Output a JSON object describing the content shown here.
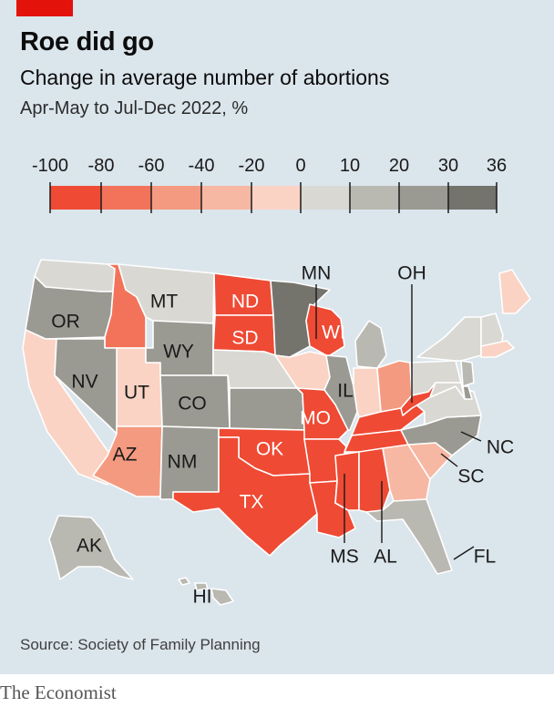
{
  "title": "Roe did go",
  "subtitle": "Change in average number of abortions",
  "units": "Apr-May to Jul-Dec 2022, %",
  "source": "Source: Society of Family Planning",
  "brand": "The Economist",
  "legend": {
    "ticks": [
      "-100",
      "-80",
      "-60",
      "-40",
      "-20",
      "0",
      "10",
      "20",
      "30",
      "36"
    ],
    "bins": [
      {
        "from": -100,
        "to": -80,
        "color": "#ef4a34"
      },
      {
        "from": -80,
        "to": -60,
        "color": "#f2735a"
      },
      {
        "from": -60,
        "to": -40,
        "color": "#f49a80"
      },
      {
        "from": -40,
        "to": -20,
        "color": "#f7b8a3"
      },
      {
        "from": -20,
        "to": 0,
        "color": "#fad3c4"
      },
      {
        "from": 0,
        "to": 10,
        "color": "#d9d8d3"
      },
      {
        "from": 10,
        "to": 20,
        "color": "#b9b8b1"
      },
      {
        "from": 20,
        "to": 30,
        "color": "#9a9992"
      },
      {
        "from": 30,
        "to": 36,
        "color": "#74736c"
      }
    ]
  },
  "states": {
    "WA": {
      "bin": 5
    },
    "OR": {
      "bin": 7,
      "label": "OR"
    },
    "CA": {
      "bin": 4
    },
    "ID": {
      "bin": 1
    },
    "NV": {
      "bin": 7,
      "label": "NV"
    },
    "UT": {
      "bin": 4,
      "label": "UT"
    },
    "AZ": {
      "bin": 2,
      "label": "AZ"
    },
    "MT": {
      "bin": 5,
      "label": "MT"
    },
    "WY": {
      "bin": 7,
      "label": "WY"
    },
    "CO": {
      "bin": 7,
      "label": "CO"
    },
    "NM": {
      "bin": 7,
      "label": "NM"
    },
    "ND": {
      "bin": 0,
      "label": "ND"
    },
    "SD": {
      "bin": 0,
      "label": "SD"
    },
    "NE": {
      "bin": 5
    },
    "KS": {
      "bin": 7
    },
    "OK": {
      "bin": 0,
      "label": "OK"
    },
    "TX": {
      "bin": 0,
      "label": "TX"
    },
    "MN": {
      "bin": 8,
      "label": "MN"
    },
    "IA": {
      "bin": 4
    },
    "MO": {
      "bin": 0,
      "label": "MO"
    },
    "AR": {
      "bin": 0
    },
    "LA": {
      "bin": 0
    },
    "WI": {
      "bin": 0,
      "label": "WI"
    },
    "IL": {
      "bin": 7,
      "label": "IL"
    },
    "MI": {
      "bin": 6
    },
    "IN": {
      "bin": 4
    },
    "OH": {
      "bin": 2,
      "label": "OH"
    },
    "KY": {
      "bin": 0
    },
    "TN": {
      "bin": 0
    },
    "MS": {
      "bin": 0,
      "label": "MS"
    },
    "AL": {
      "bin": 0,
      "label": "AL"
    },
    "GA": {
      "bin": 3
    },
    "FL": {
      "bin": 6,
      "label": "FL"
    },
    "SC": {
      "bin": 3,
      "label": "SC"
    },
    "NC": {
      "bin": 7,
      "label": "NC"
    },
    "VA": {
      "bin": 5
    },
    "WV": {
      "bin": 0
    },
    "PA": {
      "bin": 5
    },
    "NY": {
      "bin": 5
    },
    "NJ": {
      "bin": 6
    },
    "DE": {
      "bin": 7
    },
    "MD": {
      "bin": 5
    },
    "NEng": {
      "bin": 5
    },
    "ME": {
      "bin": 4
    },
    "MA": {
      "bin": 4
    },
    "AK": {
      "bin": 6,
      "label": "AK"
    },
    "HI": {
      "bin": 6,
      "label": "HI"
    }
  }
}
